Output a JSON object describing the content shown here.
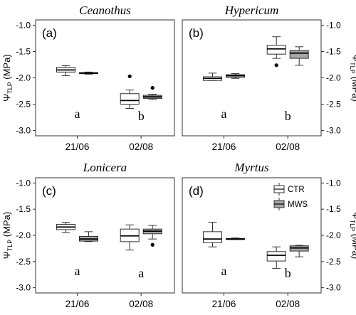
{
  "figure": {
    "y_axis_label": {
      "symbol": "Ψ",
      "subscript": "TLP",
      "unit": "(MPa)"
    },
    "legend": {
      "placement": "top-right of panel (d)"
    },
    "colors": {
      "CTR": "#ffffff",
      "MWS": "#a6a6a6",
      "stroke": "#333333"
    }
  },
  "chart_data": [
    {
      "type": "box",
      "title": "Ceanothus",
      "panel_label": "(a)",
      "categories": [
        "21/06",
        "02/08"
      ],
      "ylim": [
        -3.1,
        -0.9
      ],
      "yticks": [
        "-1.0",
        "-1.5",
        "-2.0",
        "-2.5",
        "-3.0"
      ],
      "ytick_side": "left",
      "grid": false,
      "letters": [
        "a",
        "b"
      ],
      "series": [
        {
          "name": "CTR",
          "boxes": [
            {
              "min": -1.96,
              "q1": -1.89,
              "median": -1.85,
              "q3": -1.8,
              "max": -1.77,
              "outliers": []
            },
            {
              "min": -2.58,
              "q1": -2.5,
              "median": -2.43,
              "q3": -2.3,
              "max": -2.23,
              "outliers": [
                -1.97
              ]
            }
          ]
        },
        {
          "name": "MWS",
          "boxes": [
            {
              "min": -1.93,
              "q1": -1.92,
              "median": -1.91,
              "q3": -1.9,
              "max": -1.89,
              "outliers": []
            },
            {
              "min": -2.41,
              "q1": -2.39,
              "median": -2.36,
              "q3": -2.33,
              "max": -2.31,
              "outliers": [
                -2.19
              ]
            }
          ]
        }
      ]
    },
    {
      "type": "box",
      "title": "Hypericum",
      "panel_label": "(b)",
      "categories": [
        "21/06",
        "02/08"
      ],
      "ylim": [
        -3.1,
        -0.9
      ],
      "yticks": [
        "-1.0",
        "-1.5",
        "-2.0",
        "-2.5",
        "-3.0"
      ],
      "ytick_side": "right",
      "grid": false,
      "letters": [
        "a",
        "b"
      ],
      "series": [
        {
          "name": "CTR",
          "boxes": [
            {
              "min": -2.05,
              "q1": -2.05,
              "median": -2.01,
              "q3": -1.98,
              "max": -1.91,
              "outliers": []
            },
            {
              "min": -1.63,
              "q1": -1.55,
              "median": -1.45,
              "q3": -1.38,
              "max": -1.22,
              "outliers": [
                -1.76
              ]
            }
          ]
        },
        {
          "name": "MWS",
          "boxes": [
            {
              "min": -2.01,
              "q1": -1.99,
              "median": -1.96,
              "q3": -1.94,
              "max": -1.92,
              "outliers": []
            },
            {
              "min": -1.76,
              "q1": -1.63,
              "median": -1.53,
              "q3": -1.48,
              "max": -1.41,
              "outliers": []
            }
          ]
        }
      ]
    },
    {
      "type": "box",
      "title": "Lonicera",
      "panel_label": "(c)",
      "categories": [
        "21/06",
        "02/08"
      ],
      "ylim": [
        -3.1,
        -0.9
      ],
      "yticks": [
        "-1.0",
        "-1.5",
        "-2.0",
        "-2.5",
        "-3.0"
      ],
      "ytick_side": "left",
      "grid": false,
      "letters": [
        "a",
        "a"
      ],
      "series": [
        {
          "name": "CTR",
          "boxes": [
            {
              "min": -1.95,
              "q1": -1.89,
              "median": -1.84,
              "q3": -1.79,
              "max": -1.75,
              "outliers": []
            },
            {
              "min": -2.28,
              "q1": -2.12,
              "median": -2.01,
              "q3": -1.88,
              "max": -1.8,
              "outliers": []
            }
          ]
        },
        {
          "name": "MWS",
          "boxes": [
            {
              "min": -2.12,
              "q1": -2.11,
              "median": -2.07,
              "q3": -2.02,
              "max": -1.93,
              "outliers": []
            },
            {
              "min": -2.07,
              "q1": -1.97,
              "median": -1.92,
              "q3": -1.88,
              "max": -1.81,
              "outliers": [
                -2.18
              ]
            }
          ]
        }
      ]
    },
    {
      "type": "box",
      "title": "Myrtus",
      "panel_label": "(d)",
      "categories": [
        "21/06",
        "02/08"
      ],
      "ylim": [
        -3.1,
        -0.9
      ],
      "yticks": [
        "-1.0",
        "-1.5",
        "-2.0",
        "-2.5",
        "-3.0"
      ],
      "ytick_side": "right",
      "grid": false,
      "letters": [
        "a",
        "b"
      ],
      "series": [
        {
          "name": "CTR",
          "boxes": [
            {
              "min": -2.22,
              "q1": -2.14,
              "median": -2.07,
              "q3": -1.93,
              "max": -1.75,
              "outliers": []
            },
            {
              "min": -2.63,
              "q1": -2.49,
              "median": -2.38,
              "q3": -2.31,
              "max": -2.22,
              "outliers": []
            }
          ]
        },
        {
          "name": "MWS",
          "boxes": [
            {
              "min": -2.08,
              "q1": -2.07,
              "median": -2.07,
              "q3": -2.06,
              "max": -2.05,
              "outliers": []
            },
            {
              "min": -2.41,
              "q1": -2.3,
              "median": -2.24,
              "q3": -2.2,
              "max": -2.19,
              "outliers": []
            }
          ]
        }
      ]
    }
  ]
}
